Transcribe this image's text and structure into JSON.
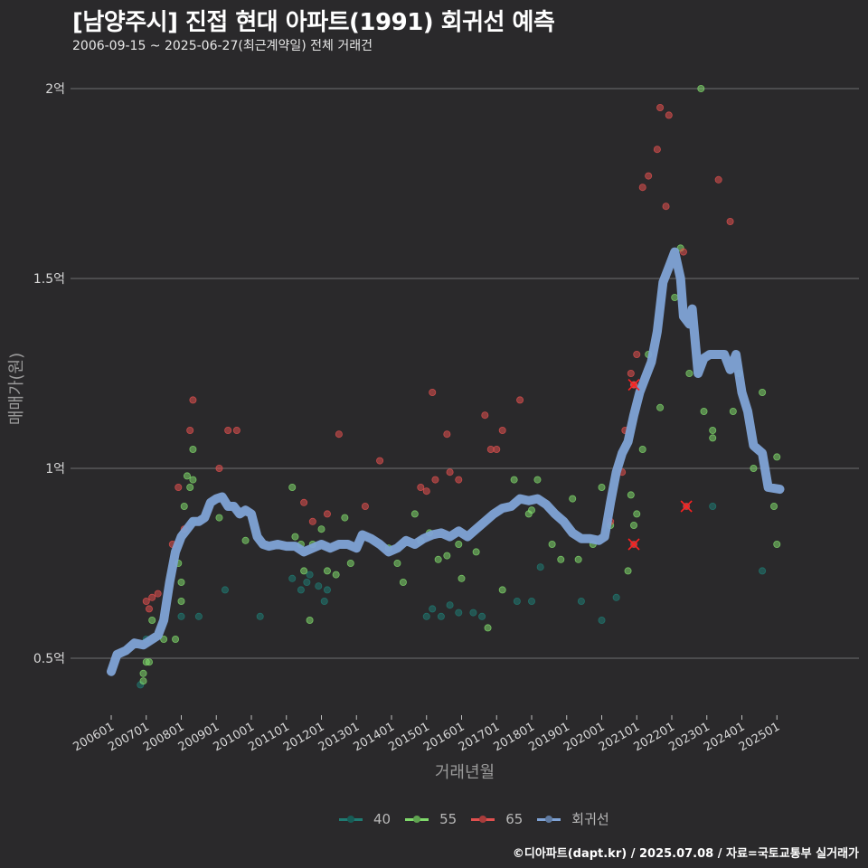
{
  "header": {
    "title": "[남양주시] 진접 현대 아파트(1991) 회귀선 예측",
    "subtitle": "2006-09-15 ~ 2025-06-27(최근계약일) 전체 거래건"
  },
  "footer": {
    "credit": "©디아파트(dapt.kr) / 2025.07.08 / 자료=국토교통부 실거래가"
  },
  "legend": {
    "items": [
      {
        "label": "40",
        "color": "#1f7a72"
      },
      {
        "label": "55",
        "color": "#7fd96b"
      },
      {
        "label": "65",
        "color": "#e0504f"
      },
      {
        "label": "회귀선",
        "color": "#7fa3d6"
      }
    ]
  },
  "chart_data": {
    "type": "scatter",
    "title": "[남양주시] 진접 현대 아파트(1991) 회귀선 예측",
    "subtitle": "2006-09-15 ~ 2025-06-27(최근계약일) 전체 거래건",
    "xlabel": "거래년월",
    "ylabel": "매매가(원)",
    "x_ticks": [
      "200601",
      "200701",
      "200801",
      "200901",
      "201001",
      "201101",
      "201201",
      "201301",
      "201401",
      "201501",
      "201601",
      "201701",
      "201801",
      "201901",
      "202001",
      "202101",
      "202201",
      "202301",
      "202401",
      "202501"
    ],
    "y_ticks": [
      {
        "value": 0.5,
        "label": "0.5억"
      },
      {
        "value": 1.0,
        "label": "1억"
      },
      {
        "value": 1.5,
        "label": "1.5억"
      },
      {
        "value": 2.0,
        "label": "2억"
      }
    ],
    "ylim": [
      0.36,
      2.1
    ],
    "grid": true,
    "legend_position": "bottom",
    "units": "억원",
    "series": [
      {
        "name": "40",
        "color": "#1f7a72",
        "points": [
          [
            "200611",
            0.43
          ],
          [
            "200701",
            0.55
          ],
          [
            "200801",
            0.61
          ],
          [
            "200805",
            0.86
          ],
          [
            "200807",
            0.61
          ],
          [
            "200904",
            0.68
          ],
          [
            "201004",
            0.61
          ],
          [
            "201103",
            0.71
          ],
          [
            "201106",
            0.68
          ],
          [
            "201108",
            0.7
          ],
          [
            "201109",
            0.72
          ],
          [
            "201112",
            0.69
          ],
          [
            "201202",
            0.65
          ],
          [
            "201203",
            0.68
          ],
          [
            "201501",
            0.61
          ],
          [
            "201503",
            0.63
          ],
          [
            "201506",
            0.61
          ],
          [
            "201509",
            0.64
          ],
          [
            "201512",
            0.62
          ],
          [
            "201605",
            0.62
          ],
          [
            "201608",
            0.61
          ],
          [
            "201708",
            0.65
          ],
          [
            "201801",
            0.65
          ],
          [
            "201804",
            0.74
          ],
          [
            "201906",
            0.65
          ],
          [
            "202001",
            0.6
          ],
          [
            "202006",
            0.66
          ],
          [
            "202303",
            0.9
          ],
          [
            "202408",
            0.73
          ]
        ]
      },
      {
        "name": "55",
        "color": "#7fd96b",
        "points": [
          [
            "200612",
            0.44
          ],
          [
            "200612",
            0.46
          ],
          [
            "200701",
            0.49
          ],
          [
            "200702",
            0.49
          ],
          [
            "200703",
            0.6
          ],
          [
            "200707",
            0.55
          ],
          [
            "200711",
            0.55
          ],
          [
            "200712",
            0.75
          ],
          [
            "200801",
            0.65
          ],
          [
            "200801",
            0.7
          ],
          [
            "200802",
            0.9
          ],
          [
            "200803",
            0.98
          ],
          [
            "200804",
            0.95
          ],
          [
            "200805",
            0.97
          ],
          [
            "200805",
            1.05
          ],
          [
            "200902",
            0.87
          ],
          [
            "200911",
            0.81
          ],
          [
            "201103",
            0.95
          ],
          [
            "201104",
            0.82
          ],
          [
            "201106",
            0.8
          ],
          [
            "201107",
            0.73
          ],
          [
            "201109",
            0.6
          ],
          [
            "201110",
            0.8
          ],
          [
            "201201",
            0.84
          ],
          [
            "201203",
            0.73
          ],
          [
            "201206",
            0.72
          ],
          [
            "201209",
            0.87
          ],
          [
            "201211",
            0.75
          ],
          [
            "201312",
            0.79
          ],
          [
            "201403",
            0.75
          ],
          [
            "201405",
            0.7
          ],
          [
            "201409",
            0.88
          ],
          [
            "201411",
            0.81
          ],
          [
            "201502",
            0.83
          ],
          [
            "201505",
            0.76
          ],
          [
            "201508",
            0.77
          ],
          [
            "201512",
            0.8
          ],
          [
            "201601",
            0.71
          ],
          [
            "201606",
            0.78
          ],
          [
            "201610",
            0.58
          ],
          [
            "201703",
            0.68
          ],
          [
            "201707",
            0.97
          ],
          [
            "201712",
            0.88
          ],
          [
            "201801",
            0.89
          ],
          [
            "201803",
            0.97
          ],
          [
            "201808",
            0.8
          ],
          [
            "201811",
            0.76
          ],
          [
            "201903",
            0.92
          ],
          [
            "201905",
            0.76
          ],
          [
            "201910",
            0.8
          ],
          [
            "202001",
            0.95
          ],
          [
            "202004",
            0.85
          ],
          [
            "202010",
            0.73
          ],
          [
            "202011",
            0.93
          ],
          [
            "202012",
            0.85
          ],
          [
            "202101",
            0.88
          ],
          [
            "202103",
            1.05
          ],
          [
            "202105",
            1.3
          ],
          [
            "202109",
            1.16
          ],
          [
            "202202",
            1.45
          ],
          [
            "202204",
            1.58
          ],
          [
            "202207",
            1.25
          ],
          [
            "202212",
            1.15
          ],
          [
            "202303",
            1.1
          ],
          [
            "202303",
            1.08
          ],
          [
            "202310",
            1.15
          ],
          [
            "202312",
            1.25
          ],
          [
            "202405",
            1.0
          ],
          [
            "202408",
            1.2
          ],
          [
            "202412",
            0.9
          ],
          [
            "202501",
            0.8
          ],
          [
            "202501",
            1.03
          ],
          [
            "202211",
            2.0
          ]
        ]
      },
      {
        "name": "65",
        "color": "#e0504f",
        "points": [
          [
            "200701",
            0.65
          ],
          [
            "200702",
            0.63
          ],
          [
            "200703",
            0.66
          ],
          [
            "200705",
            0.67
          ],
          [
            "200710",
            0.8
          ],
          [
            "200712",
            0.95
          ],
          [
            "200802",
            0.84
          ],
          [
            "200804",
            1.1
          ],
          [
            "200805",
            1.18
          ],
          [
            "200902",
            1.0
          ],
          [
            "200905",
            1.1
          ],
          [
            "200908",
            1.1
          ],
          [
            "201107",
            0.91
          ],
          [
            "201110",
            0.86
          ],
          [
            "201203",
            0.88
          ],
          [
            "201207",
            1.09
          ],
          [
            "201304",
            0.9
          ],
          [
            "201309",
            1.02
          ],
          [
            "201411",
            0.95
          ],
          [
            "201501",
            0.94
          ],
          [
            "201504",
            0.97
          ],
          [
            "201508",
            1.09
          ],
          [
            "201509",
            0.99
          ],
          [
            "201503",
            1.2
          ],
          [
            "201512",
            0.97
          ],
          [
            "201609",
            1.14
          ],
          [
            "201611",
            1.05
          ],
          [
            "201701",
            1.05
          ],
          [
            "201703",
            1.1
          ],
          [
            "201709",
            1.18
          ],
          [
            "202004",
            0.86
          ],
          [
            "202008",
            0.99
          ],
          [
            "202009",
            1.1
          ],
          [
            "202011",
            1.25
          ],
          [
            "202012",
            1.22
          ],
          [
            "202101",
            1.3
          ],
          [
            "202103",
            1.74
          ],
          [
            "202105",
            1.77
          ],
          [
            "202108",
            1.84
          ],
          [
            "202109",
            1.95
          ],
          [
            "202111",
            1.69
          ],
          [
            "202112",
            1.93
          ],
          [
            "202205",
            1.57
          ],
          [
            "202305",
            1.76
          ],
          [
            "202309",
            1.65
          ]
        ]
      },
      {
        "name": "회귀선",
        "color": "#7fa3d6",
        "points": [
          [
            "200601",
            0.465
          ],
          [
            "200603",
            0.51
          ],
          [
            "200606",
            0.52
          ],
          [
            "200609",
            0.54
          ],
          [
            "200612",
            0.535
          ],
          [
            "200703",
            0.55
          ],
          [
            "200705",
            0.56
          ],
          [
            "200707",
            0.6
          ],
          [
            "200709",
            0.7
          ],
          [
            "200711",
            0.78
          ],
          [
            "200801",
            0.82
          ],
          [
            "200803",
            0.84
          ],
          [
            "200805",
            0.86
          ],
          [
            "200807",
            0.86
          ],
          [
            "200809",
            0.87
          ],
          [
            "200811",
            0.91
          ],
          [
            "200901",
            0.92
          ],
          [
            "200903",
            0.925
          ],
          [
            "200905",
            0.9
          ],
          [
            "200907",
            0.9
          ],
          [
            "200909",
            0.88
          ],
          [
            "200911",
            0.89
          ],
          [
            "201001",
            0.88
          ],
          [
            "201003",
            0.82
          ],
          [
            "201005",
            0.8
          ],
          [
            "201007",
            0.795
          ],
          [
            "201010",
            0.8
          ],
          [
            "201101",
            0.795
          ],
          [
            "201104",
            0.795
          ],
          [
            "201107",
            0.78
          ],
          [
            "201110",
            0.79
          ],
          [
            "201201",
            0.8
          ],
          [
            "201204",
            0.79
          ],
          [
            "201207",
            0.8
          ],
          [
            "201210",
            0.8
          ],
          [
            "201301",
            0.79
          ],
          [
            "201303",
            0.825
          ],
          [
            "201306",
            0.815
          ],
          [
            "201309",
            0.8
          ],
          [
            "201312",
            0.78
          ],
          [
            "201403",
            0.79
          ],
          [
            "201406",
            0.81
          ],
          [
            "201409",
            0.8
          ],
          [
            "201412",
            0.815
          ],
          [
            "201503",
            0.825
          ],
          [
            "201506",
            0.83
          ],
          [
            "201509",
            0.82
          ],
          [
            "201512",
            0.835
          ],
          [
            "201603",
            0.82
          ],
          [
            "201606",
            0.84
          ],
          [
            "201609",
            0.86
          ],
          [
            "201612",
            0.88
          ],
          [
            "201703",
            0.895
          ],
          [
            "201706",
            0.9
          ],
          [
            "201709",
            0.92
          ],
          [
            "201712",
            0.915
          ],
          [
            "201803",
            0.92
          ],
          [
            "201806",
            0.905
          ],
          [
            "201809",
            0.88
          ],
          [
            "201812",
            0.86
          ],
          [
            "201903",
            0.83
          ],
          [
            "201906",
            0.815
          ],
          [
            "201909",
            0.815
          ],
          [
            "201912",
            0.81
          ],
          [
            "202002",
            0.82
          ],
          [
            "202004",
            0.91
          ],
          [
            "202006",
            0.99
          ],
          [
            "202008",
            1.04
          ],
          [
            "202010",
            1.07
          ],
          [
            "202012",
            1.14
          ],
          [
            "202102",
            1.2
          ],
          [
            "202104",
            1.24
          ],
          [
            "202106",
            1.28
          ],
          [
            "202108",
            1.36
          ],
          [
            "202110",
            1.49
          ],
          [
            "202112",
            1.53
          ],
          [
            "202202",
            1.57
          ],
          [
            "202204",
            1.5
          ],
          [
            "202205",
            1.4
          ],
          [
            "202207",
            1.38
          ],
          [
            "202208",
            1.42
          ],
          [
            "202210",
            1.25
          ],
          [
            "202212",
            1.29
          ],
          [
            "202302",
            1.3
          ],
          [
            "202305",
            1.3
          ],
          [
            "202307",
            1.3
          ],
          [
            "202309",
            1.26
          ],
          [
            "202311",
            1.3
          ],
          [
            "202401",
            1.2
          ],
          [
            "202403",
            1.15
          ],
          [
            "202405",
            1.06
          ],
          [
            "202408",
            1.04
          ],
          [
            "202410",
            0.95
          ],
          [
            "202502",
            0.945
          ]
        ]
      }
    ],
    "annotations": [
      {
        "type": "outlier-x",
        "x": "202012",
        "value": 1.22,
        "color": "#ff2020"
      },
      {
        "type": "outlier-x",
        "x": "202012",
        "value": 0.8,
        "color": "#ff2020"
      },
      {
        "type": "outlier-x",
        "x": "202206",
        "value": 0.9,
        "color": "#ff2020"
      }
    ]
  }
}
